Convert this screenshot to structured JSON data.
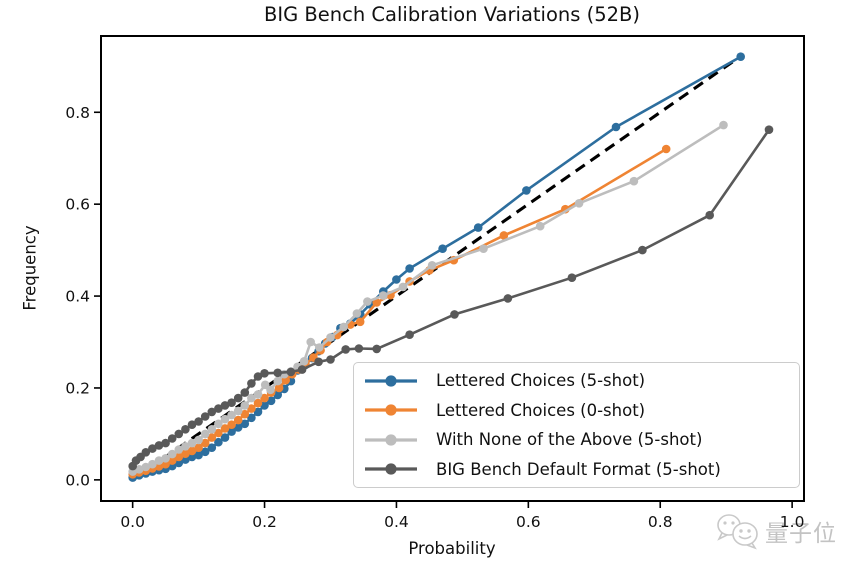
{
  "watermark": {
    "text": "量子位",
    "logo": "qbitai-faces-logo"
  },
  "chart_data": {
    "type": "line",
    "title": "BIG Bench Calibration Variations (52B)",
    "xlabel": "Probability",
    "ylabel": "Frequency",
    "xlim": [
      -0.048,
      1.018
    ],
    "ylim": [
      -0.046,
      0.966
    ],
    "xticks": [
      0.0,
      0.2,
      0.4,
      0.6,
      0.8,
      1.0
    ],
    "yticks": [
      0.0,
      0.2,
      0.4,
      0.6,
      0.8
    ],
    "grid": false,
    "legend_position": "lower right",
    "reference_line": {
      "name": "perfect-calibration-diagonal",
      "style": "dashed",
      "color": "#000000",
      "from": [
        0.0,
        0.0
      ],
      "to": [
        0.91,
        0.91
      ]
    },
    "series": [
      {
        "name": "Lettered Choices (5-shot)",
        "color": "#2d6e9e",
        "marker": "o",
        "points": [
          [
            0.0,
            0.005
          ],
          [
            0.01,
            0.01
          ],
          [
            0.02,
            0.014
          ],
          [
            0.03,
            0.018
          ],
          [
            0.04,
            0.021
          ],
          [
            0.05,
            0.024
          ],
          [
            0.06,
            0.03
          ],
          [
            0.07,
            0.037
          ],
          [
            0.08,
            0.044
          ],
          [
            0.09,
            0.05
          ],
          [
            0.1,
            0.054
          ],
          [
            0.11,
            0.061
          ],
          [
            0.12,
            0.07
          ],
          [
            0.13,
            0.082
          ],
          [
            0.14,
            0.092
          ],
          [
            0.15,
            0.105
          ],
          [
            0.16,
            0.114
          ],
          [
            0.17,
            0.122
          ],
          [
            0.18,
            0.135
          ],
          [
            0.19,
            0.148
          ],
          [
            0.2,
            0.162
          ],
          [
            0.21,
            0.172
          ],
          [
            0.22,
            0.185
          ],
          [
            0.23,
            0.198
          ],
          [
            0.24,
            0.215
          ],
          [
            0.25,
            0.238
          ],
          [
            0.262,
            0.25
          ],
          [
            0.272,
            0.265
          ],
          [
            0.282,
            0.28
          ],
          [
            0.292,
            0.297
          ],
          [
            0.303,
            0.311
          ],
          [
            0.315,
            0.33
          ],
          [
            0.33,
            0.34
          ],
          [
            0.345,
            0.36
          ],
          [
            0.36,
            0.382
          ],
          [
            0.38,
            0.41
          ],
          [
            0.4,
            0.436
          ],
          [
            0.42,
            0.46
          ],
          [
            0.47,
            0.503
          ],
          [
            0.524,
            0.549
          ],
          [
            0.597,
            0.63
          ],
          [
            0.733,
            0.768
          ],
          [
            0.922,
            0.921
          ]
        ]
      },
      {
        "name": "Lettered Choices (0-shot)",
        "color": "#ef8433",
        "marker": "o",
        "points": [
          [
            0.0,
            0.012
          ],
          [
            0.01,
            0.016
          ],
          [
            0.02,
            0.02
          ],
          [
            0.03,
            0.025
          ],
          [
            0.04,
            0.029
          ],
          [
            0.05,
            0.034
          ],
          [
            0.06,
            0.042
          ],
          [
            0.07,
            0.05
          ],
          [
            0.08,
            0.057
          ],
          [
            0.09,
            0.063
          ],
          [
            0.1,
            0.07
          ],
          [
            0.11,
            0.08
          ],
          [
            0.12,
            0.092
          ],
          [
            0.13,
            0.102
          ],
          [
            0.14,
            0.112
          ],
          [
            0.15,
            0.12
          ],
          [
            0.16,
            0.13
          ],
          [
            0.17,
            0.143
          ],
          [
            0.18,
            0.155
          ],
          [
            0.19,
            0.167
          ],
          [
            0.2,
            0.178
          ],
          [
            0.21,
            0.19
          ],
          [
            0.222,
            0.2
          ],
          [
            0.232,
            0.217
          ],
          [
            0.242,
            0.23
          ],
          [
            0.252,
            0.24
          ],
          [
            0.262,
            0.252
          ],
          [
            0.274,
            0.266
          ],
          [
            0.285,
            0.282
          ],
          [
            0.295,
            0.3
          ],
          [
            0.31,
            0.315
          ],
          [
            0.33,
            0.338
          ],
          [
            0.345,
            0.344
          ],
          [
            0.37,
            0.386
          ],
          [
            0.391,
            0.402
          ],
          [
            0.42,
            0.432
          ],
          [
            0.45,
            0.456
          ],
          [
            0.487,
            0.478
          ],
          [
            0.563,
            0.532
          ],
          [
            0.656,
            0.589
          ],
          [
            0.809,
            0.72
          ]
        ]
      },
      {
        "name": "With None of the Above (5-shot)",
        "color": "#bdbdbd",
        "marker": "o",
        "points": [
          [
            0.0,
            0.018
          ],
          [
            0.01,
            0.023
          ],
          [
            0.02,
            0.028
          ],
          [
            0.03,
            0.034
          ],
          [
            0.04,
            0.042
          ],
          [
            0.05,
            0.047
          ],
          [
            0.06,
            0.056
          ],
          [
            0.07,
            0.066
          ],
          [
            0.08,
            0.073
          ],
          [
            0.09,
            0.08
          ],
          [
            0.1,
            0.087
          ],
          [
            0.11,
            0.1
          ],
          [
            0.12,
            0.11
          ],
          [
            0.13,
            0.122
          ],
          [
            0.14,
            0.132
          ],
          [
            0.15,
            0.141
          ],
          [
            0.16,
            0.15
          ],
          [
            0.17,
            0.162
          ],
          [
            0.18,
            0.178
          ],
          [
            0.19,
            0.186
          ],
          [
            0.201,
            0.207
          ],
          [
            0.209,
            0.196
          ],
          [
            0.22,
            0.215
          ],
          [
            0.23,
            0.23
          ],
          [
            0.24,
            0.236
          ],
          [
            0.25,
            0.246
          ],
          [
            0.26,
            0.258
          ],
          [
            0.27,
            0.3
          ],
          [
            0.283,
            0.288
          ],
          [
            0.3,
            0.31
          ],
          [
            0.32,
            0.333
          ],
          [
            0.34,
            0.362
          ],
          [
            0.356,
            0.388
          ],
          [
            0.38,
            0.401
          ],
          [
            0.41,
            0.42
          ],
          [
            0.454,
            0.467
          ],
          [
            0.532,
            0.503
          ],
          [
            0.618,
            0.552
          ],
          [
            0.677,
            0.602
          ],
          [
            0.76,
            0.65
          ],
          [
            0.896,
            0.772
          ]
        ]
      },
      {
        "name": "BIG Bench Default Format (5-shot)",
        "color": "#595959",
        "marker": "o",
        "points": [
          [
            0.0,
            0.03
          ],
          [
            0.005,
            0.042
          ],
          [
            0.012,
            0.05
          ],
          [
            0.02,
            0.06
          ],
          [
            0.03,
            0.068
          ],
          [
            0.04,
            0.075
          ],
          [
            0.05,
            0.08
          ],
          [
            0.06,
            0.09
          ],
          [
            0.07,
            0.1
          ],
          [
            0.08,
            0.11
          ],
          [
            0.09,
            0.12
          ],
          [
            0.1,
            0.127
          ],
          [
            0.11,
            0.138
          ],
          [
            0.12,
            0.148
          ],
          [
            0.13,
            0.155
          ],
          [
            0.14,
            0.162
          ],
          [
            0.15,
            0.168
          ],
          [
            0.16,
            0.178
          ],
          [
            0.17,
            0.19
          ],
          [
            0.18,
            0.21
          ],
          [
            0.19,
            0.225
          ],
          [
            0.2,
            0.232
          ],
          [
            0.22,
            0.233
          ],
          [
            0.24,
            0.235
          ],
          [
            0.257,
            0.24
          ],
          [
            0.282,
            0.257
          ],
          [
            0.3,
            0.262
          ],
          [
            0.323,
            0.284
          ],
          [
            0.343,
            0.286
          ],
          [
            0.37,
            0.285
          ],
          [
            0.42,
            0.316
          ],
          [
            0.488,
            0.36
          ],
          [
            0.569,
            0.395
          ],
          [
            0.666,
            0.44
          ],
          [
            0.773,
            0.5
          ],
          [
            0.875,
            0.576
          ],
          [
            0.965,
            0.762
          ]
        ]
      }
    ]
  }
}
